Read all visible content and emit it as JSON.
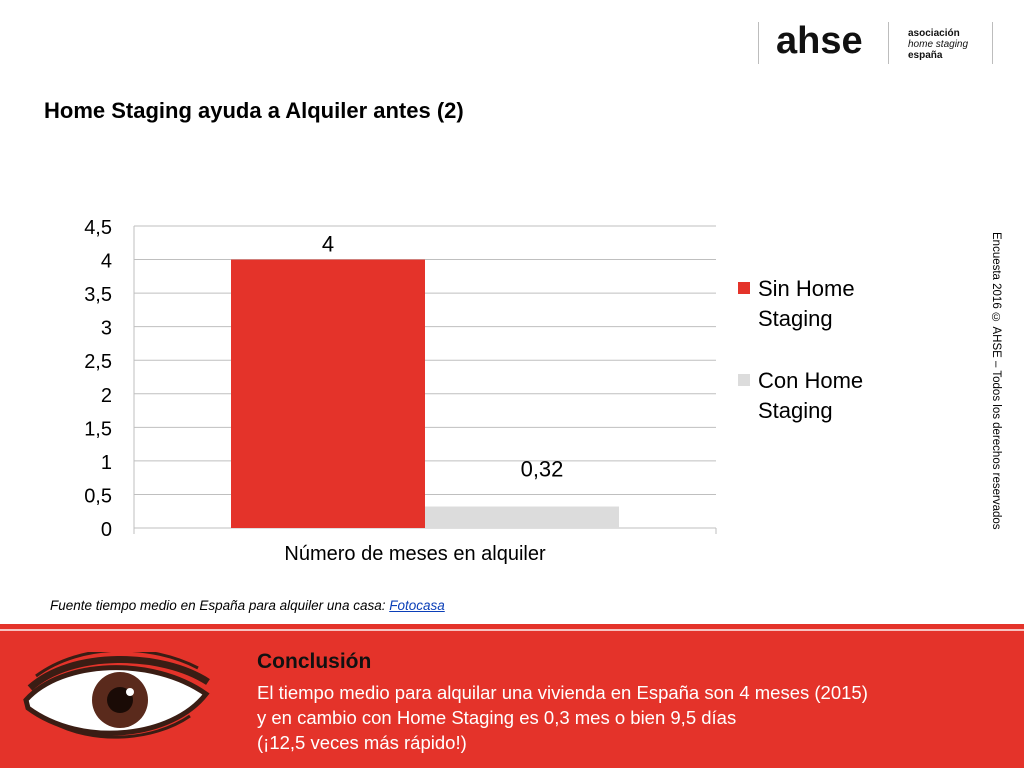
{
  "logo": {
    "brand": "ahse",
    "line1": "asociación",
    "line2": "home staging",
    "line3": "españa"
  },
  "title": "Home Staging ayuda a Alquiler antes (2)",
  "side_note": "Encuesta 2016 © AHSE – Todos los derechos reservados",
  "source": {
    "prefix": "Fuente tiempo medio en España para alquiler una casa: ",
    "link": "Fotocasa"
  },
  "conclusion": {
    "title": "Conclusión",
    "line1": "El tiempo medio para alquilar una vivienda en España son 4 meses (2015)",
    "line2": "y en cambio con Home Staging es 0,3 mes o bien 9,5 días",
    "line3": "(¡12,5 veces más rápido!)"
  },
  "chart_data": {
    "type": "bar",
    "categories": [
      "Número de meses en alquiler"
    ],
    "series": [
      {
        "name": "Sin Home Staging",
        "legend_lines": [
          "Sin Home",
          "Staging"
        ],
        "values": [
          4
        ],
        "label": "4",
        "color": "#e4332a"
      },
      {
        "name": "Con Home Staging",
        "legend_lines": [
          "Con Home",
          "Staging"
        ],
        "values": [
          0.32
        ],
        "label": "0,32",
        "color": "#dcdcdc"
      }
    ],
    "yticks": [
      "0",
      "0,5",
      "1",
      "1,5",
      "2",
      "2,5",
      "3",
      "3,5",
      "4",
      "4,5"
    ],
    "ylim": [
      0,
      4.5
    ],
    "xlabel": "Número de meses en alquiler",
    "grid": true,
    "legend_position": "right"
  }
}
